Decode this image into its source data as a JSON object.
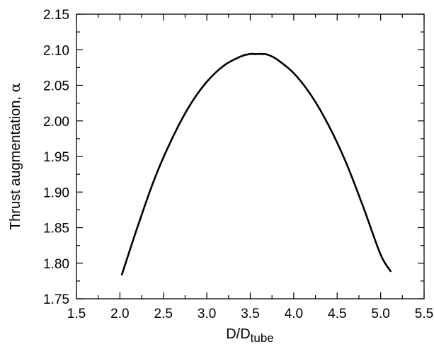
{
  "chart_data": {
    "type": "line",
    "title": "",
    "xlabel": {
      "main": "D/D",
      "subscript": "tube"
    },
    "ylabel": {
      "text": "Thrust augmentation, ",
      "symbol": "α"
    },
    "xlim": [
      1.5,
      5.5
    ],
    "ylim": [
      1.75,
      2.15
    ],
    "xticks": [
      "1.5",
      "2.0",
      "2.5",
      "3.0",
      "3.5",
      "4.0",
      "4.5",
      "5.0",
      "5.5"
    ],
    "yticks": [
      "1.75",
      "1.80",
      "1.85",
      "1.90",
      "1.95",
      "2.00",
      "2.05",
      "2.10",
      "2.15"
    ],
    "grid": false,
    "legend": "none",
    "line_color": "#000000",
    "series": [
      {
        "x": [
          2.02,
          2.2,
          2.4,
          2.6,
          2.8,
          3.0,
          3.2,
          3.4,
          3.5,
          3.55,
          3.65,
          3.7,
          3.8,
          4.0,
          4.2,
          4.4,
          4.6,
          4.8,
          5.0,
          5.12
        ],
        "y": [
          1.783,
          1.85,
          1.919,
          1.975,
          2.021,
          2.055,
          2.078,
          2.091,
          2.094,
          2.094,
          2.094,
          2.093,
          2.087,
          2.067,
          2.036,
          1.994,
          1.942,
          1.879,
          1.812,
          1.788
        ]
      }
    ]
  }
}
